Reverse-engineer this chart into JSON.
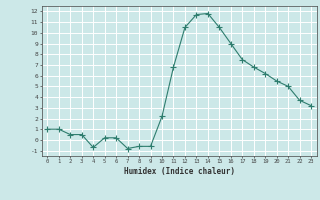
{
  "x": [
    0,
    1,
    2,
    3,
    4,
    5,
    6,
    7,
    8,
    9,
    10,
    11,
    12,
    13,
    14,
    15,
    16,
    17,
    18,
    19,
    20,
    21,
    22,
    23
  ],
  "y": [
    1,
    1,
    0.5,
    0.5,
    -0.7,
    0.2,
    0.2,
    -0.8,
    -0.6,
    -0.6,
    2.2,
    6.8,
    10.5,
    11.7,
    11.8,
    10.5,
    9.0,
    7.5,
    6.8,
    6.2,
    5.5,
    5.0,
    3.7,
    3.2
  ],
  "xlabel": "Humidex (Indice chaleur)",
  "xlim": [
    -0.5,
    23.5
  ],
  "ylim": [
    -1.5,
    12.5
  ],
  "yticks": [
    -1,
    0,
    1,
    2,
    3,
    4,
    5,
    6,
    7,
    8,
    9,
    10,
    11,
    12
  ],
  "xticks": [
    0,
    1,
    2,
    3,
    4,
    5,
    6,
    7,
    8,
    9,
    10,
    11,
    12,
    13,
    14,
    15,
    16,
    17,
    18,
    19,
    20,
    21,
    22,
    23
  ],
  "line_color": "#2e7d6e",
  "marker": "+",
  "marker_size": 4,
  "background_color": "#cce8e8",
  "grid_color": "#ffffff",
  "tick_color": "#444444",
  "label_color": "#333333"
}
